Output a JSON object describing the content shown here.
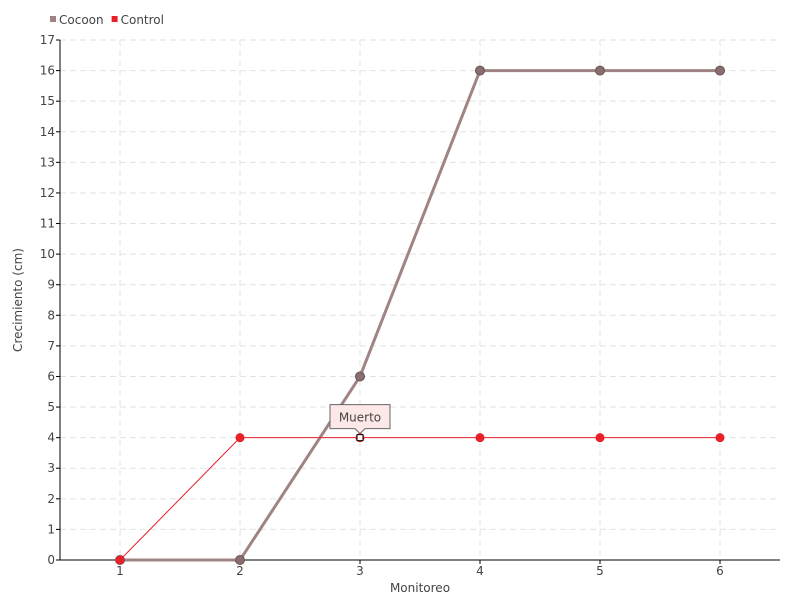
{
  "chart_data": {
    "type": "line",
    "title": "",
    "xlabel": "Monitoreo",
    "ylabel": "Crecimiento (cm)",
    "x": [
      1,
      2,
      3,
      4,
      5,
      6
    ],
    "xlim": [
      0.5,
      6.5
    ],
    "ylim": [
      0,
      17
    ],
    "yticks": [
      0,
      1,
      2,
      3,
      4,
      5,
      6,
      7,
      8,
      9,
      10,
      11,
      12,
      13,
      14,
      15,
      16,
      17
    ],
    "grid": true,
    "legend": "top-left",
    "series": [
      {
        "name": "Cocoon",
        "values": [
          0,
          0,
          6,
          16,
          16,
          16
        ],
        "color": "#a08484"
      },
      {
        "name": "Control",
        "values": [
          0,
          4,
          4,
          4,
          4,
          4
        ],
        "color": "#e8202a"
      }
    ],
    "annotations": [
      {
        "series": "Control",
        "x": 3,
        "text": "Muerto"
      }
    ]
  }
}
